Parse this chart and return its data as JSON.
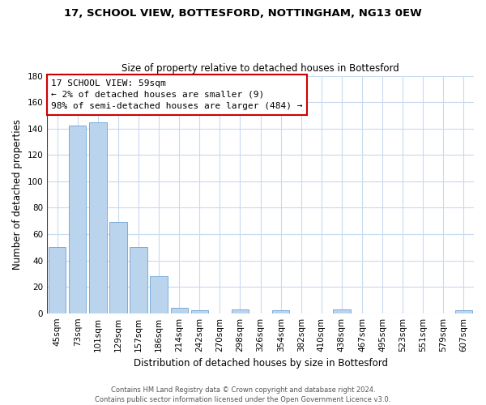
{
  "title": "17, SCHOOL VIEW, BOTTESFORD, NOTTINGHAM, NG13 0EW",
  "subtitle": "Size of property relative to detached houses in Bottesford",
  "xlabel": "Distribution of detached houses by size in Bottesford",
  "ylabel": "Number of detached properties",
  "bar_color": "#bad4ed",
  "bar_edge_color": "#6aa3d4",
  "categories": [
    "45sqm",
    "73sqm",
    "101sqm",
    "129sqm",
    "157sqm",
    "186sqm",
    "214sqm",
    "242sqm",
    "270sqm",
    "298sqm",
    "326sqm",
    "354sqm",
    "382sqm",
    "410sqm",
    "438sqm",
    "467sqm",
    "495sqm",
    "523sqm",
    "551sqm",
    "579sqm",
    "607sqm"
  ],
  "values": [
    50,
    142,
    145,
    69,
    50,
    28,
    4,
    2,
    0,
    3,
    0,
    2,
    0,
    0,
    3,
    0,
    0,
    0,
    0,
    0,
    2
  ],
  "red_line_x": 0,
  "annotation_title": "17 SCHOOL VIEW: 59sqm",
  "annotation_line1": "← 2% of detached houses are smaller (9)",
  "annotation_line2": "98% of semi-detached houses are larger (484) →",
  "ylim": [
    0,
    180
  ],
  "yticks": [
    0,
    20,
    40,
    60,
    80,
    100,
    120,
    140,
    160,
    180
  ],
  "footer_line1": "Contains HM Land Registry data © Crown copyright and database right 2024.",
  "footer_line2": "Contains public sector information licensed under the Open Government Licence v3.0.",
  "background_color": "#ffffff",
  "grid_color": "#c8daf0",
  "red_color": "#cc0000"
}
